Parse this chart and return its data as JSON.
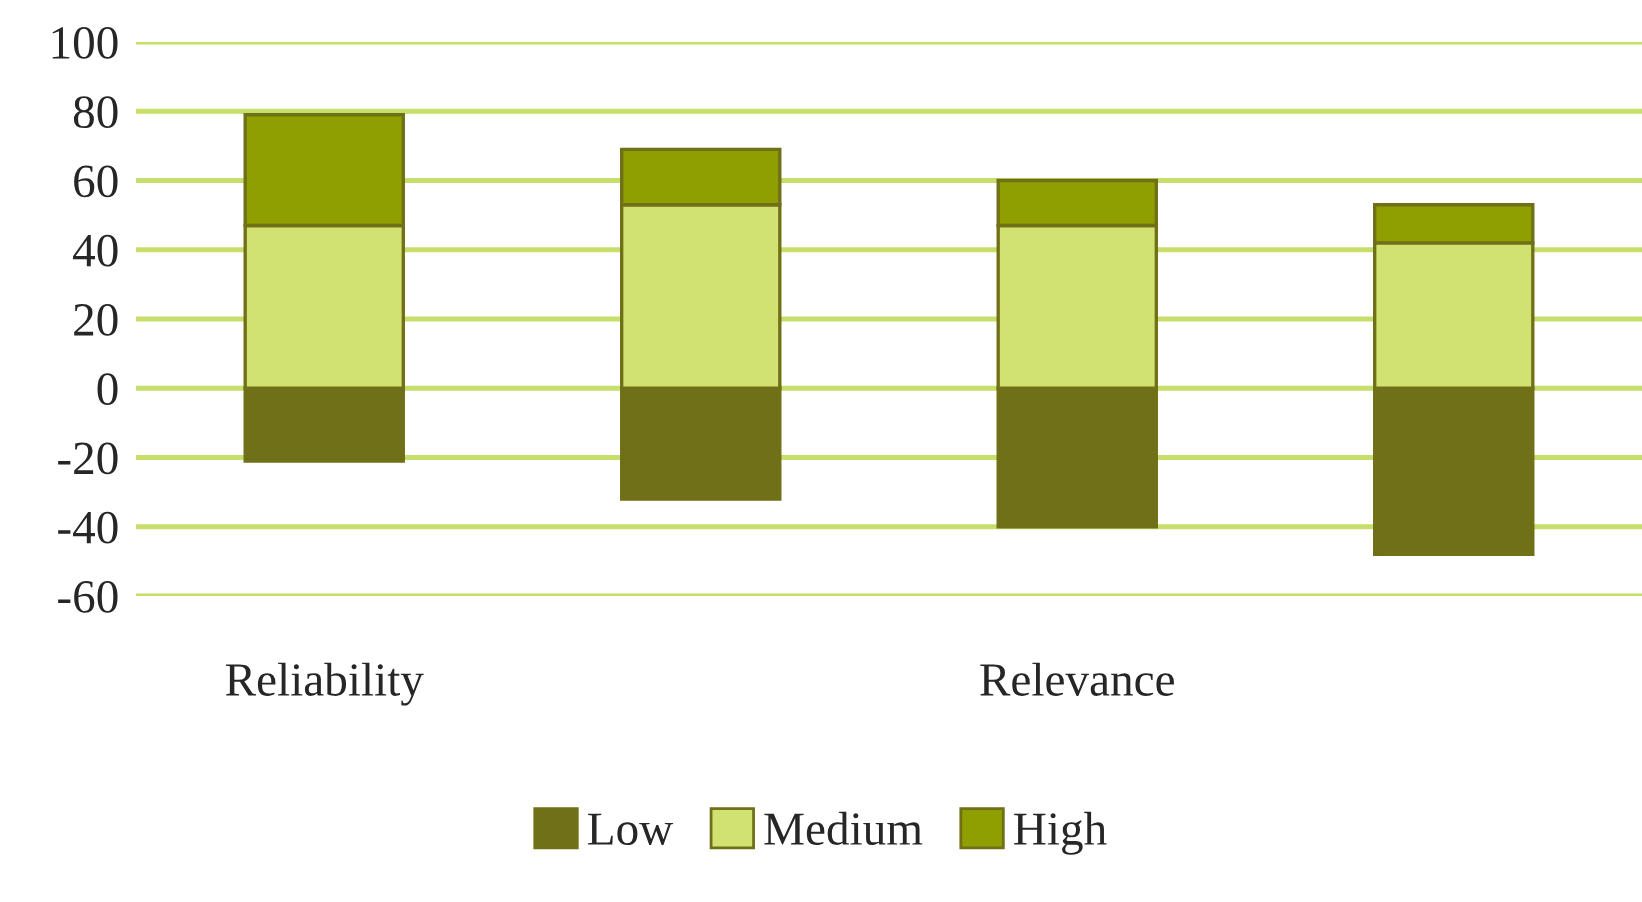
{
  "chart_data": {
    "type": "bar",
    "stacked": true,
    "categories": [
      "Reliability",
      null,
      "Relevance",
      null
    ],
    "series": [
      {
        "name": "Low",
        "color": "#6f7018",
        "values": [
          -21,
          -32,
          -40,
          -48
        ]
      },
      {
        "name": "Medium",
        "color": "#d2e272",
        "values": [
          47,
          53,
          47,
          42
        ]
      },
      {
        "name": "High",
        "color": "#8f9e00",
        "values": [
          32,
          16,
          13,
          11
        ]
      }
    ],
    "ylim": [
      -60,
      100
    ],
    "yticks": [
      -60,
      -40,
      -20,
      0,
      20,
      40,
      60,
      80,
      100
    ],
    "grid": "y",
    "legend": "bottom"
  }
}
